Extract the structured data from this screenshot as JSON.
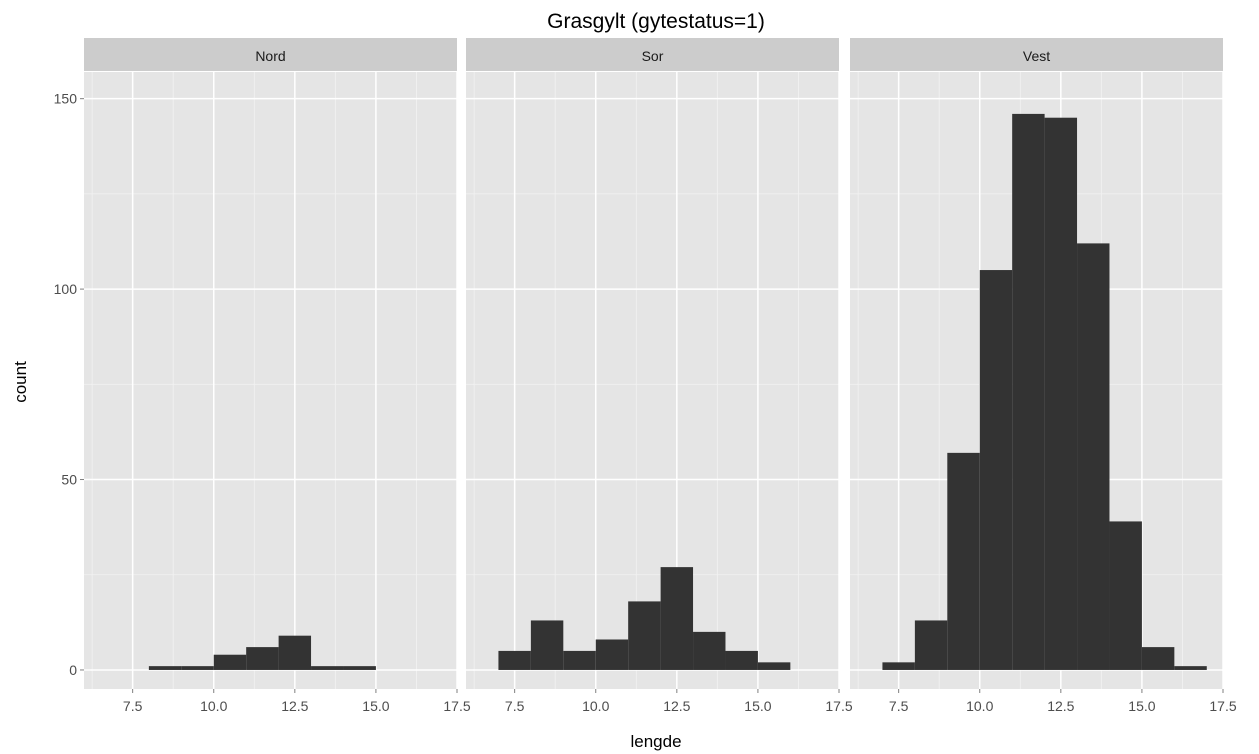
{
  "chart_data": {
    "type": "bar",
    "subtype": "faceted-histogram",
    "title": "Grasgylt (gytestatus=1)",
    "xlabel": "lengde",
    "ylabel": "count",
    "xlim": [
      6,
      17.5
    ],
    "ylim": [
      -5,
      157
    ],
    "x_ticks": [
      7.5,
      10.0,
      12.5,
      15.0,
      17.5
    ],
    "x_tick_labels": [
      "7.5",
      "10.0",
      "12.5",
      "15.0",
      "17.5"
    ],
    "y_ticks": [
      0,
      50,
      100,
      150
    ],
    "y_tick_labels": [
      "0",
      "50",
      "100",
      "150"
    ],
    "grid": true,
    "bin_width": 1,
    "bar_color": "#333333",
    "panel_background": "#e5e5e5",
    "strip_background": "#cccccc",
    "grid_color": "#ffffff",
    "facets": [
      {
        "label": "Nord",
        "bins": [
          {
            "x0": 8,
            "x1": 9,
            "count": 1
          },
          {
            "x0": 9,
            "x1": 10,
            "count": 1
          },
          {
            "x0": 10,
            "x1": 11,
            "count": 4
          },
          {
            "x0": 11,
            "x1": 12,
            "count": 6
          },
          {
            "x0": 12,
            "x1": 13,
            "count": 9
          },
          {
            "x0": 13,
            "x1": 14,
            "count": 1
          },
          {
            "x0": 14,
            "x1": 15,
            "count": 1
          }
        ]
      },
      {
        "label": "Sor",
        "bins": [
          {
            "x0": 7,
            "x1": 8,
            "count": 5
          },
          {
            "x0": 8,
            "x1": 9,
            "count": 13
          },
          {
            "x0": 9,
            "x1": 10,
            "count": 5
          },
          {
            "x0": 10,
            "x1": 11,
            "count": 8
          },
          {
            "x0": 11,
            "x1": 12,
            "count": 18
          },
          {
            "x0": 12,
            "x1": 13,
            "count": 27
          },
          {
            "x0": 13,
            "x1": 14,
            "count": 10
          },
          {
            "x0": 14,
            "x1": 15,
            "count": 5
          },
          {
            "x0": 15,
            "x1": 16,
            "count": 2
          }
        ]
      },
      {
        "label": "Vest",
        "bins": [
          {
            "x0": 7,
            "x1": 8,
            "count": 2
          },
          {
            "x0": 8,
            "x1": 9,
            "count": 13
          },
          {
            "x0": 9,
            "x1": 10,
            "count": 57
          },
          {
            "x0": 10,
            "x1": 11,
            "count": 105
          },
          {
            "x0": 11,
            "x1": 12,
            "count": 146
          },
          {
            "x0": 12,
            "x1": 13,
            "count": 145
          },
          {
            "x0": 13,
            "x1": 14,
            "count": 112
          },
          {
            "x0": 14,
            "x1": 15,
            "count": 39
          },
          {
            "x0": 15,
            "x1": 16,
            "count": 6
          },
          {
            "x0": 16,
            "x1": 17,
            "count": 1
          }
        ]
      }
    ]
  }
}
